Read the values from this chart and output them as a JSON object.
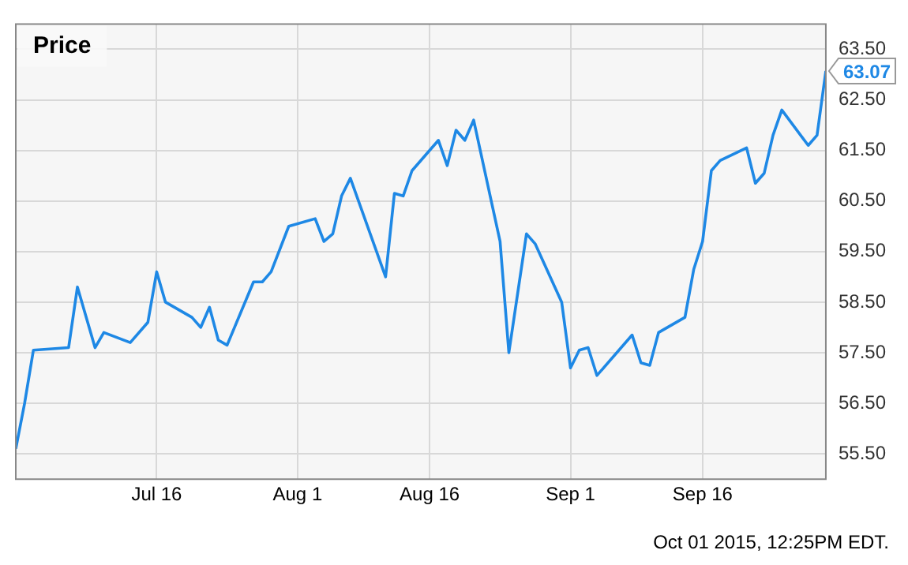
{
  "chart_data": {
    "type": "line",
    "title": "Price",
    "x": [
      "2015-06-30",
      "2015-07-01",
      "2015-07-02",
      "2015-07-06",
      "2015-07-07",
      "2015-07-09",
      "2015-07-10",
      "2015-07-13",
      "2015-07-15",
      "2015-07-16",
      "2015-07-17",
      "2015-07-20",
      "2015-07-21",
      "2015-07-22",
      "2015-07-23",
      "2015-07-24",
      "2015-07-27",
      "2015-07-28",
      "2015-07-29",
      "2015-07-31",
      "2015-08-03",
      "2015-08-04",
      "2015-08-05",
      "2015-08-06",
      "2015-08-07",
      "2015-08-11",
      "2015-08-12",
      "2015-08-13",
      "2015-08-14",
      "2015-08-17",
      "2015-08-18",
      "2015-08-19",
      "2015-08-20",
      "2015-08-21",
      "2015-08-24",
      "2015-08-25",
      "2015-08-27",
      "2015-08-28",
      "2015-08-31",
      "2015-09-01",
      "2015-09-02",
      "2015-09-03",
      "2015-09-04",
      "2015-09-08",
      "2015-09-09",
      "2015-09-10",
      "2015-09-11",
      "2015-09-14",
      "2015-09-15",
      "2015-09-16",
      "2015-09-17",
      "2015-09-18",
      "2015-09-21",
      "2015-09-22",
      "2015-09-23",
      "2015-09-24",
      "2015-09-25",
      "2015-09-28",
      "2015-09-29",
      "2015-09-30"
    ],
    "series": [
      {
        "color": "#1e88e5",
        "values": [
          55.6,
          56.5,
          57.55,
          57.6,
          58.8,
          57.6,
          57.9,
          57.7,
          58.1,
          59.1,
          58.5,
          58.2,
          58.0,
          58.4,
          57.75,
          57.65,
          58.9,
          58.9,
          59.1,
          60.0,
          60.15,
          59.7,
          59.85,
          60.6,
          60.95,
          59.0,
          60.65,
          60.6,
          61.1,
          61.7,
          61.2,
          61.9,
          61.7,
          62.1,
          59.7,
          57.5,
          59.85,
          59.65,
          58.5,
          57.2,
          57.55,
          57.6,
          57.05,
          57.85,
          57.3,
          57.25,
          57.9,
          58.2,
          59.15,
          59.7,
          61.1,
          61.3,
          61.55,
          60.85,
          61.05,
          61.8,
          62.3,
          61.6,
          61.8,
          63.07
        ],
        "value_labels": [
          null,
          null,
          null,
          null,
          null,
          null,
          null,
          null,
          null,
          null,
          null,
          null,
          null,
          null,
          null,
          null,
          null,
          null,
          null,
          null,
          null,
          null,
          null,
          null,
          null,
          null,
          null,
          null,
          null,
          null,
          null,
          null,
          null,
          null,
          null,
          null,
          null,
          null,
          null,
          null,
          null,
          null,
          null,
          null,
          null,
          null,
          null,
          null,
          null,
          null,
          null,
          null,
          null,
          null,
          null,
          null,
          null,
          null,
          null,
          "63.07"
        ]
      }
    ],
    "xlim": [
      "2015-06-30",
      "2015-09-30"
    ],
    "xticks": [
      {
        "value": "2015-07-16",
        "label": "Jul 16"
      },
      {
        "value": "2015-08-01",
        "label": "Aug 1"
      },
      {
        "value": "2015-08-16",
        "label": "Aug 16"
      },
      {
        "value": "2015-09-01",
        "label": "Sep 1"
      },
      {
        "value": "2015-09-16",
        "label": "Sep 16"
      }
    ],
    "ylim": [
      55,
      64
    ],
    "yticks": [
      {
        "value": 55.5,
        "label": "55.50"
      },
      {
        "value": 56.5,
        "label": "56.50"
      },
      {
        "value": 57.5,
        "label": "57.50"
      },
      {
        "value": 58.5,
        "label": "58.50"
      },
      {
        "value": 59.5,
        "label": "59.50"
      },
      {
        "value": 60.5,
        "label": "60.50"
      },
      {
        "value": 61.5,
        "label": "61.50"
      },
      {
        "value": 62.5,
        "label": "62.50"
      },
      {
        "value": 63.5,
        "label": "63.50"
      }
    ],
    "grid": true,
    "legend": false,
    "marker": "none",
    "line_style": "solid",
    "annotations": [
      "Oct 01 2015, 12:25PM EDT."
    ]
  }
}
